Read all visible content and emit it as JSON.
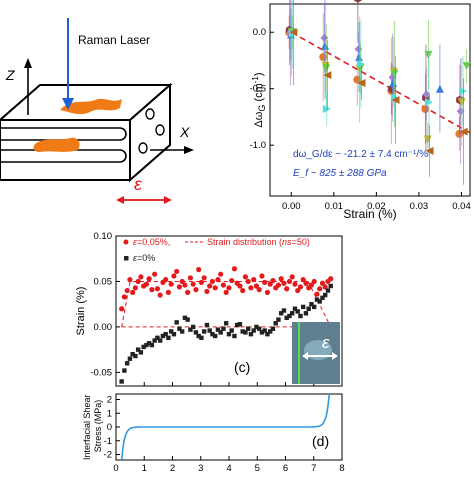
{
  "schematic": {
    "laser_label": "Raman Laser",
    "axis_z": "Z",
    "axis_x": "X",
    "epsilon": "ε"
  },
  "colors": {
    "red": "#e41a1c",
    "dark": "#222222",
    "blue_laser": "#1f5fd6",
    "orange": "#f07b16",
    "cyan": "#33aadd",
    "trend_red": "#e41a1c"
  },
  "chart_data": [
    {
      "id": "raman-shift",
      "type": "scatter",
      "ylabel": "Δω_G (cm⁻¹)",
      "xlabel": "Strain (%)",
      "xlim": [
        -0.005,
        0.042
      ],
      "ylim": [
        -1.45,
        0.25
      ],
      "xticks": [
        "0.00",
        "0.01",
        "0.02",
        "0.03",
        "0.04"
      ],
      "yticks": [
        "0.0",
        "-0.5",
        "-1.0"
      ],
      "annotation1": "dω_G/dε ~ -21.2 ± 7.4 cm⁻¹/%",
      "annotation2": "E_f ~ 825 ± 288 GPa",
      "trend": {
        "slope": -21.2,
        "x0": 0.0,
        "x1": 0.042
      },
      "series": [
        {
          "color": "#e8792a",
          "marker": "circle",
          "points": [
            [
              0.0,
              0.0
            ],
            [
              0.008,
              -0.22
            ],
            [
              0.016,
              -0.42
            ],
            [
              0.024,
              -0.52
            ],
            [
              0.032,
              -0.68
            ],
            [
              0.04,
              -0.9
            ]
          ]
        },
        {
          "color": "#8b3a3a",
          "marker": "hexagon",
          "points": [
            [
              0.0,
              0.02
            ],
            [
              0.008,
              0.45
            ],
            [
              0.016,
              0.3
            ],
            [
              0.024,
              -0.5
            ],
            [
              0.032,
              -0.58
            ],
            [
              0.04,
              -0.6
            ]
          ]
        },
        {
          "color": "#a97fd6",
          "marker": "diamond",
          "points": [
            [
              0.0,
              0.0
            ],
            [
              0.008,
              -0.05
            ],
            [
              0.016,
              -0.15
            ],
            [
              0.024,
              -0.4
            ],
            [
              0.032,
              -0.55
            ],
            [
              0.04,
              -0.7
            ]
          ]
        },
        {
          "color": "#3a7de0",
          "marker": "triangle-up",
          "points": [
            [
              0.0,
              -0.02
            ],
            [
              0.008,
              -0.12
            ],
            [
              0.016,
              -0.22
            ],
            [
              0.024,
              -0.45
            ],
            [
              0.035,
              -0.5
            ]
          ]
        },
        {
          "color": "#c9b12a",
          "marker": "triangle-down",
          "points": [
            [
              0.0,
              0.0
            ],
            [
              0.008,
              -0.3
            ],
            [
              0.016,
              -0.33
            ],
            [
              0.024,
              -0.35
            ],
            [
              0.032,
              -0.95
            ],
            [
              0.04,
              -0.62
            ]
          ]
        },
        {
          "color": "#66cc44",
          "marker": "triangle-down",
          "points": [
            [
              0.0,
              0.0
            ],
            [
              0.008,
              -0.32
            ],
            [
              0.016,
              -0.32
            ],
            [
              0.024,
              -0.37
            ],
            [
              0.032,
              -0.2
            ],
            [
              0.041,
              -0.3
            ]
          ]
        },
        {
          "color": "#55dddd",
          "marker": "triangle-right",
          "points": [
            [
              0.0,
              -0.01
            ],
            [
              0.008,
              -0.68
            ],
            [
              0.016,
              -0.28
            ],
            [
              0.024,
              -0.58
            ],
            [
              0.032,
              -0.62
            ],
            [
              0.04,
              -0.52
            ]
          ]
        },
        {
          "color": "#b5651d",
          "marker": "triangle-left",
          "points": [
            [
              0.0,
              0.0
            ],
            [
              0.008,
              -0.38
            ],
            [
              0.016,
              -0.45
            ],
            [
              0.024,
              -0.6
            ],
            [
              0.032,
              -1.05
            ],
            [
              0.04,
              -0.88
            ]
          ]
        }
      ]
    },
    {
      "id": "strain-profile",
      "type": "scatter",
      "panel_label": "(c)",
      "ylabel": "Strain (%)",
      "xlim": [
        0,
        8
      ],
      "ylim": [
        -0.065,
        0.1
      ],
      "yticks": [
        "0.10",
        "0.05",
        "0.00",
        "-0.05"
      ],
      "legend": [
        {
          "label": "ε=0.05%",
          "color": "#e41a1c",
          "marker": "circle"
        },
        {
          "label": "Strain distribution (ns=50)",
          "color": "#e41a1c",
          "marker": "dash"
        },
        {
          "label": "ε=0%",
          "color": "#222222",
          "marker": "square"
        }
      ],
      "strain_distribution": {
        "x": [
          0.2,
          0.5,
          6.8,
          7.6
        ],
        "y_low": 0.0,
        "y_high": 0.05
      },
      "series_red": [
        0.02,
        0.033,
        0.04,
        0.052,
        0.038,
        0.043,
        0.05,
        0.055,
        0.045,
        0.047,
        0.053,
        0.041,
        0.058,
        0.042,
        0.035,
        0.049,
        0.052,
        0.038,
        0.047,
        0.056,
        0.061,
        0.044,
        0.05,
        0.046,
        0.038,
        0.054,
        0.047,
        0.041,
        0.063,
        0.049,
        0.054,
        0.039,
        0.045,
        0.05,
        0.043,
        0.052,
        0.058,
        0.046,
        0.038,
        0.043,
        0.051,
        0.064,
        0.048,
        0.045,
        0.04,
        0.055,
        0.05,
        0.043,
        0.052,
        0.045,
        0.041,
        0.056,
        0.049,
        0.038,
        0.047,
        0.051,
        0.043,
        0.046,
        0.053,
        0.048,
        0.042,
        0.05,
        0.055,
        0.047,
        0.04,
        0.044,
        0.052,
        0.048,
        0.043,
        0.046,
        0.05,
        0.036,
        0.042,
        0.048,
        0.044,
        0.05,
        0.053
      ],
      "series_black": [
        -0.06,
        -0.048,
        -0.04,
        -0.035,
        -0.03,
        -0.032,
        -0.025,
        -0.028,
        -0.022,
        -0.02,
        -0.018,
        -0.02,
        -0.015,
        -0.012,
        -0.015,
        -0.01,
        -0.008,
        -0.012,
        -0.005,
        -0.008,
        0.005,
        -0.002,
        -0.005,
        0.01,
        0.008,
        -0.003,
        0.0,
        -0.006,
        -0.01,
        -0.012,
        -0.005,
        0.002,
        -0.004,
        -0.008,
        -0.01,
        -0.003,
        -0.006,
        -0.002,
        0.004,
        -0.008,
        -0.004,
        -0.01,
        0.002,
        0.003,
        -0.005,
        -0.006,
        -0.002,
        -0.008,
        -0.004,
        0.0,
        -0.002,
        -0.006,
        -0.004,
        -0.008,
        -0.005,
        -0.002,
        0.004,
        0.008,
        0.015,
        0.018,
        0.01,
        0.012,
        0.015,
        0.02,
        0.017,
        0.012,
        0.022,
        0.015,
        0.02,
        0.025,
        0.022,
        0.03,
        0.028,
        0.032,
        0.035,
        0.04,
        0.045
      ],
      "inset_label": "ε"
    },
    {
      "id": "interfacial-shear",
      "type": "line",
      "panel_label": "(d)",
      "ylabel": "Interfacial Shear Stress (MPa)",
      "xlim": [
        0,
        8
      ],
      "ylim": [
        -2.4,
        2.4
      ],
      "xticks": [
        "0",
        "1",
        "2",
        "3",
        "4",
        "5",
        "6",
        "7",
        "8"
      ],
      "yticks": [
        "2",
        "1",
        "0",
        "-1",
        "-2"
      ],
      "curve": {
        "x_start": 0.2,
        "x_end": 7.55,
        "decay": 0.055,
        "amplitude": 2.4
      },
      "color": "#3399dd"
    }
  ]
}
